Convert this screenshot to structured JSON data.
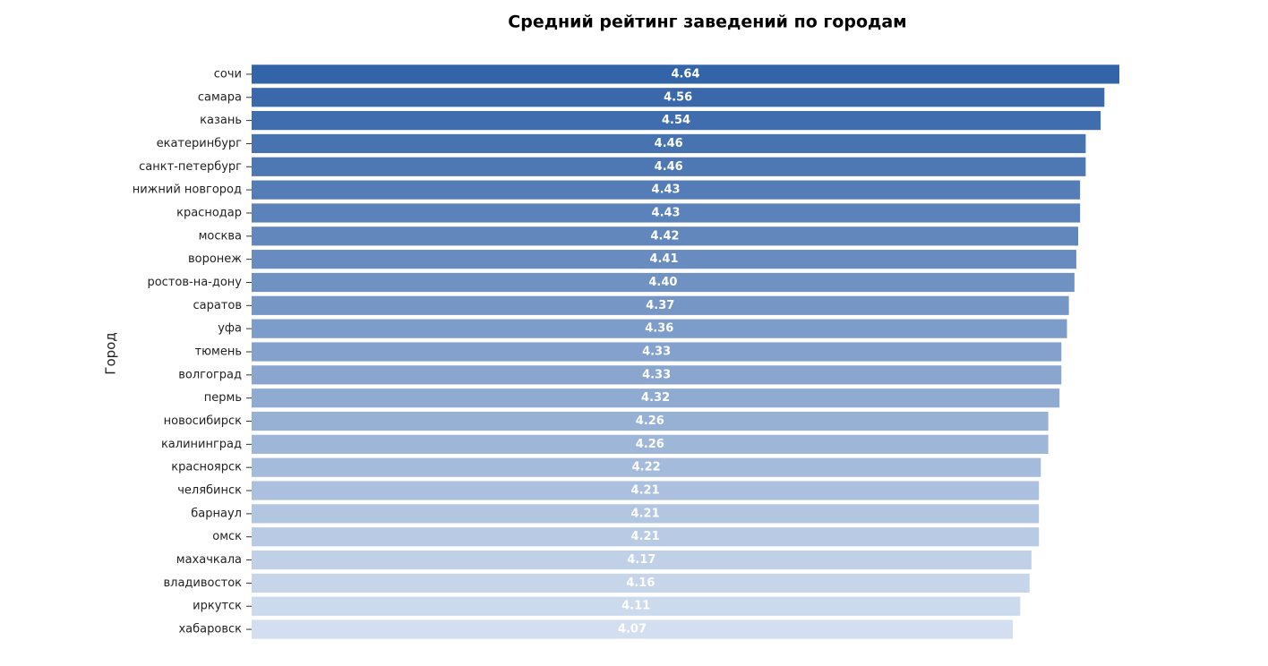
{
  "chart_data": {
    "type": "barh",
    "title": "Средний рейтинг заведений по городам",
    "y_label": "Город",
    "categories": [
      "сочи",
      "самара",
      "казань",
      "екатеринбург",
      "санкт-петербург",
      "нижний новгород",
      "краснодар",
      "москва",
      "воронеж",
      "ростов-на-дону",
      "саратов",
      "уфа",
      "тюмень",
      "волгоград",
      "пермь",
      "новосибирск",
      "калининград",
      "красноярск",
      "челябинск",
      "барнаул",
      "омск",
      "махачкала",
      "владивосток",
      "иркутск",
      "хабаровск"
    ],
    "values": [
      4.64,
      4.56,
      4.54,
      4.46,
      4.46,
      4.43,
      4.43,
      4.42,
      4.41,
      4.4,
      4.37,
      4.36,
      4.33,
      4.33,
      4.32,
      4.26,
      4.26,
      4.22,
      4.21,
      4.21,
      4.21,
      4.17,
      4.16,
      4.11,
      4.07
    ],
    "value_labels": [
      "4.64",
      "4.56",
      "4.54",
      "4.46",
      "4.46",
      "4.43",
      "4.43",
      "4.42",
      "4.41",
      "4.40",
      "4.37",
      "4.36",
      "4.33",
      "4.33",
      "4.32",
      "4.26",
      "4.26",
      "4.22",
      "4.21",
      "4.21",
      "4.21",
      "4.17",
      "4.16",
      "4.11",
      "4.07"
    ],
    "colors": [
      "#3363a8",
      "#3a68ab",
      "#406dae",
      "#4773b1",
      "#4e78b4",
      "#547db7",
      "#5b82ba",
      "#6287bd",
      "#688cc0",
      "#6f92c3",
      "#7697c6",
      "#7c9cc9",
      "#83a1cc",
      "#8aa6cf",
      "#90abd2",
      "#97b1d5",
      "#9eb6d8",
      "#a4bbdb",
      "#abc0de",
      "#b2c5e1",
      "#b8cae4",
      "#bfd0e7",
      "#c6d5ea",
      "#ccdaed",
      "#d3dff0"
    ],
    "xlim": [
      0,
      4.64
    ]
  }
}
